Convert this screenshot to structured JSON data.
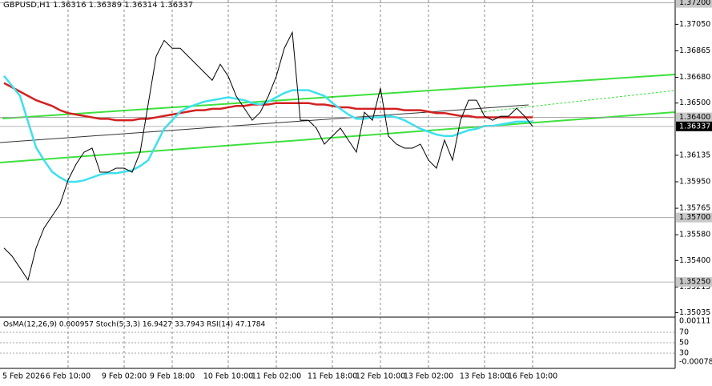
{
  "chart_data": {
    "type": "line",
    "title": "GBPUSD,H1  1.36316 1.36389 1.36314 1.36337",
    "indicator_title": "OsMA(12,26,9) 0.000957 Stoch(5,3,3) 16.9427 33.7943 RSI(14) 47.1784",
    "categories": [
      "5 Feb 2026",
      null,
      null,
      null,
      null,
      null,
      null,
      null,
      "6 Feb 10:00",
      null,
      null,
      null,
      null,
      null,
      null,
      "9 Feb 02:00",
      null,
      null,
      null,
      null,
      null,
      "9 Feb 18:00",
      null,
      null,
      null,
      null,
      null,
      null,
      "10 Feb 10:00",
      null,
      null,
      null,
      null,
      null,
      "11 Feb 02:00",
      null,
      null,
      null,
      null,
      null,
      null,
      "11 Feb 18:00",
      null,
      null,
      null,
      null,
      null,
      "12 Feb 10:00",
      null,
      null,
      null,
      null,
      null,
      "13 Feb 02:00",
      null,
      null,
      null,
      null,
      null,
      null,
      "13 Feb 18:00",
      null,
      null,
      null,
      null,
      null,
      "16 Feb 10:00"
    ],
    "series": [
      {
        "name": "Close",
        "color": "#000000",
        "values": [
          1.35487,
          1.35431,
          1.35348,
          1.35264,
          1.35487,
          1.35627,
          1.3571,
          1.35794,
          1.35962,
          1.36073,
          1.36157,
          1.36185,
          1.36017,
          1.36017,
          1.36045,
          1.36045,
          1.36017,
          1.36157,
          1.36492,
          1.36827,
          1.36938,
          1.36883,
          1.36883,
          1.36827,
          1.36771,
          1.36715,
          1.36659,
          1.36771,
          1.36687,
          1.36548,
          1.36464,
          1.3638,
          1.36436,
          1.36548,
          1.36687,
          1.36883,
          1.36994,
          1.3638,
          1.3638,
          1.36325,
          1.36213,
          1.36269,
          1.36325,
          1.36241,
          1.36157,
          1.36436,
          1.3638,
          1.36604,
          1.36269,
          1.36213,
          1.36185,
          1.36185,
          1.36213,
          1.36101,
          1.36045,
          1.36241,
          1.36101,
          1.3638,
          1.3652,
          1.3652,
          1.36408,
          1.3638,
          1.36408,
          1.36408,
          1.36464,
          1.36408,
          1.36337
        ]
      },
      {
        "name": "MA red",
        "color": "#d42020",
        "values": [
          1.3664,
          1.3661,
          1.3658,
          1.3655,
          1.3652,
          1.365,
          1.3648,
          1.3645,
          1.3643,
          1.3642,
          1.3641,
          1.364,
          1.3639,
          1.3639,
          1.3638,
          1.3638,
          1.3638,
          1.3639,
          1.3639,
          1.364,
          1.3641,
          1.3642,
          1.3643,
          1.3644,
          1.3645,
          1.3645,
          1.3646,
          1.3646,
          1.3647,
          1.3648,
          1.3648,
          1.3649,
          1.3649,
          1.3649,
          1.365,
          1.365,
          1.365,
          1.365,
          1.365,
          1.3649,
          1.3649,
          1.3648,
          1.3647,
          1.3647,
          1.3646,
          1.3646,
          1.3646,
          1.3646,
          1.3646,
          1.3646,
          1.3645,
          1.3645,
          1.3645,
          1.3644,
          1.3643,
          1.3643,
          1.3642,
          1.3641,
          1.3641,
          1.364,
          1.364,
          1.364,
          1.364,
          1.364,
          1.364,
          1.364,
          1.364
        ]
      },
      {
        "name": "MA cyan",
        "color": "#3ee0ee",
        "values": [
          1.3669,
          1.3662,
          1.3655,
          1.3637,
          1.3619,
          1.361,
          1.3602,
          1.3598,
          1.3595,
          1.3595,
          1.3596,
          1.3598,
          1.36,
          1.3601,
          1.3601,
          1.3602,
          1.3603,
          1.3606,
          1.361,
          1.3621,
          1.3632,
          1.3638,
          1.3644,
          1.3647,
          1.3649,
          1.3651,
          1.3652,
          1.3653,
          1.3654,
          1.3653,
          1.3652,
          1.365,
          1.3649,
          1.3651,
          1.3654,
          1.3657,
          1.3659,
          1.3659,
          1.3659,
          1.3657,
          1.3655,
          1.365,
          1.3646,
          1.3642,
          1.3639,
          1.3639,
          1.364,
          1.364,
          1.3641,
          1.364,
          1.3638,
          1.3635,
          1.3632,
          1.363,
          1.3628,
          1.3627,
          1.3627,
          1.3629,
          1.3631,
          1.3632,
          1.3634,
          1.3634,
          1.3635,
          1.3636,
          1.3637,
          1.3637,
          1.3637
        ]
      }
    ],
    "ylim": [
      1.3501,
      1.3722
    ],
    "yticks": [
      {
        "value": 1.3705,
        "label": "1.37050"
      },
      {
        "value": 1.36865,
        "label": "1.36865"
      },
      {
        "value": 1.3668,
        "label": "1.36680"
      },
      {
        "value": 1.365,
        "label": "1.36500"
      },
      {
        "value": 1.36135,
        "label": "1.36135"
      },
      {
        "value": 1.3595,
        "label": "1.35950"
      },
      {
        "value": 1.35765,
        "label": "1.35765"
      },
      {
        "value": 1.3558,
        "label": "1.35580"
      },
      {
        "value": 1.354,
        "label": "1.35400"
      },
      {
        "value": 1.35215,
        "label": "1.35215"
      },
      {
        "value": 1.35035,
        "label": "1.35035"
      }
    ],
    "levels": [
      {
        "value": 1.372,
        "label": "1.37200"
      },
      {
        "value": 1.364,
        "label": "1.36400"
      },
      {
        "value": 1.357,
        "label": "1.35700"
      },
      {
        "value": 1.3525,
        "label": "1.35250"
      }
    ],
    "current_price": {
      "value": 1.36337,
      "label": "1.36337"
    },
    "sub_ylim": [
      0,
      100
    ],
    "sub_yticks": [
      70,
      50,
      30
    ],
    "osma_range": [
      "0.00111",
      "-0.000783"
    ]
  }
}
